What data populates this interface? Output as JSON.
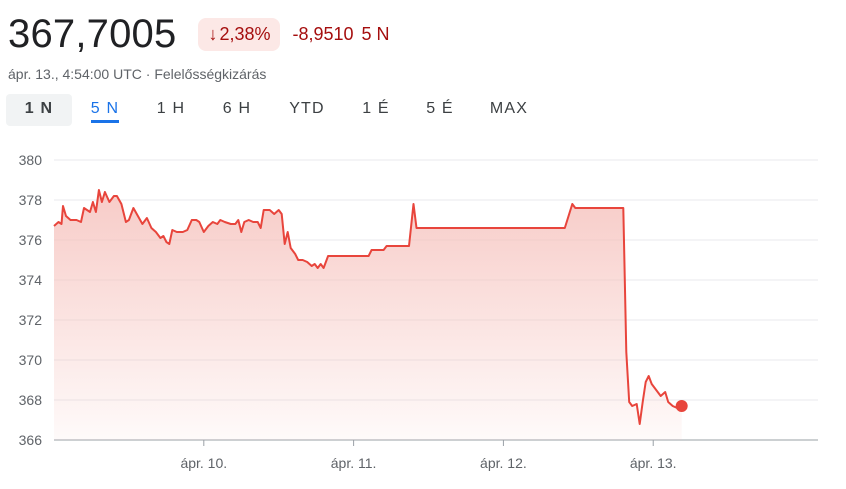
{
  "header": {
    "price": "367,7005",
    "badge_arrow": "↓",
    "badge_pct": "2,38%",
    "change_value": "-8,9510",
    "change_period": "5 N"
  },
  "subline": {
    "timestamp": "ápr. 13., 4:54:00 UTC",
    "separator": "·",
    "disclaimer": "Felelősségkizárás"
  },
  "tabs": [
    {
      "label": "1 N",
      "state": "selected"
    },
    {
      "label": "5 N",
      "state": "active"
    },
    {
      "label": "1 H",
      "state": "normal"
    },
    {
      "label": "6 H",
      "state": "normal"
    },
    {
      "label": "YTD",
      "state": "normal"
    },
    {
      "label": "1 É",
      "state": "normal"
    },
    {
      "label": "5 É",
      "state": "normal"
    },
    {
      "label": "MAX",
      "state": "normal"
    }
  ],
  "colors": {
    "line": "#e8453c",
    "fill_top": "#f6c2bd",
    "grid": "#e8eaed",
    "axis": "#5f6368"
  },
  "chart_data": {
    "type": "area",
    "ylim": [
      366,
      380
    ],
    "yticks": [
      "366",
      "368",
      "370",
      "372",
      "374",
      "376",
      "378",
      "380"
    ],
    "xlim": [
      0,
      5.1
    ],
    "xticks": [
      {
        "x": 1,
        "label": "ápr. 10."
      },
      {
        "x": 2,
        "label": "ápr. 11."
      },
      {
        "x": 3,
        "label": "ápr. 12."
      },
      {
        "x": 4,
        "label": "ápr. 13."
      }
    ],
    "points": [
      [
        0.0,
        376.7
      ],
      [
        0.03,
        376.9
      ],
      [
        0.05,
        376.8
      ],
      [
        0.06,
        377.7
      ],
      [
        0.08,
        377.2
      ],
      [
        0.11,
        377.0
      ],
      [
        0.15,
        377.0
      ],
      [
        0.18,
        376.9
      ],
      [
        0.2,
        377.6
      ],
      [
        0.24,
        377.4
      ],
      [
        0.26,
        377.9
      ],
      [
        0.28,
        377.4
      ],
      [
        0.3,
        378.5
      ],
      [
        0.32,
        377.9
      ],
      [
        0.34,
        378.4
      ],
      [
        0.37,
        377.9
      ],
      [
        0.4,
        378.2
      ],
      [
        0.42,
        378.2
      ],
      [
        0.45,
        377.8
      ],
      [
        0.48,
        376.9
      ],
      [
        0.5,
        377.0
      ],
      [
        0.53,
        377.6
      ],
      [
        0.56,
        377.2
      ],
      [
        0.59,
        376.8
      ],
      [
        0.62,
        377.1
      ],
      [
        0.65,
        376.6
      ],
      [
        0.68,
        376.4
      ],
      [
        0.71,
        376.1
      ],
      [
        0.73,
        376.2
      ],
      [
        0.75,
        375.9
      ],
      [
        0.77,
        375.8
      ],
      [
        0.79,
        376.5
      ],
      [
        0.82,
        376.4
      ],
      [
        0.86,
        376.4
      ],
      [
        0.89,
        376.5
      ],
      [
        0.92,
        377.0
      ],
      [
        0.95,
        377.0
      ],
      [
        0.97,
        376.9
      ],
      [
        1.0,
        376.4
      ],
      [
        1.03,
        376.7
      ],
      [
        1.06,
        376.9
      ],
      [
        1.09,
        376.8
      ],
      [
        1.11,
        377.0
      ],
      [
        1.14,
        376.9
      ],
      [
        1.18,
        376.8
      ],
      [
        1.21,
        376.8
      ],
      [
        1.23,
        377.0
      ],
      [
        1.25,
        376.4
      ],
      [
        1.27,
        376.9
      ],
      [
        1.3,
        377.0
      ],
      [
        1.33,
        376.9
      ],
      [
        1.36,
        376.9
      ],
      [
        1.38,
        376.6
      ],
      [
        1.4,
        377.5
      ],
      [
        1.44,
        377.5
      ],
      [
        1.47,
        377.3
      ],
      [
        1.5,
        377.5
      ],
      [
        1.52,
        377.3
      ],
      [
        1.54,
        375.8
      ],
      [
        1.56,
        376.4
      ],
      [
        1.58,
        375.6
      ],
      [
        1.61,
        375.3
      ],
      [
        1.63,
        375.0
      ],
      [
        1.66,
        375.0
      ],
      [
        1.69,
        374.9
      ],
      [
        1.72,
        374.7
      ],
      [
        1.74,
        374.8
      ],
      [
        1.76,
        374.6
      ],
      [
        1.78,
        374.8
      ],
      [
        1.8,
        374.6
      ],
      [
        1.83,
        375.2
      ],
      [
        2.1,
        375.2
      ],
      [
        2.12,
        375.5
      ],
      [
        2.2,
        375.5
      ],
      [
        2.22,
        375.7
      ],
      [
        2.37,
        375.7
      ],
      [
        2.4,
        377.8
      ],
      [
        2.42,
        376.6
      ],
      [
        3.41,
        376.6
      ],
      [
        3.46,
        377.8
      ],
      [
        3.48,
        377.6
      ],
      [
        3.8,
        377.6
      ],
      [
        3.82,
        370.4
      ],
      [
        3.84,
        367.9
      ],
      [
        3.86,
        367.7
      ],
      [
        3.89,
        367.8
      ],
      [
        3.91,
        366.8
      ],
      [
        3.93,
        367.9
      ],
      [
        3.95,
        368.9
      ],
      [
        3.97,
        369.2
      ],
      [
        3.99,
        368.8
      ],
      [
        4.02,
        368.5
      ],
      [
        4.05,
        368.2
      ],
      [
        4.08,
        368.4
      ],
      [
        4.1,
        367.9
      ],
      [
        4.13,
        367.7
      ],
      [
        4.16,
        367.6
      ],
      [
        4.19,
        367.7
      ]
    ],
    "last_point": [
      4.19,
      367.7
    ]
  }
}
